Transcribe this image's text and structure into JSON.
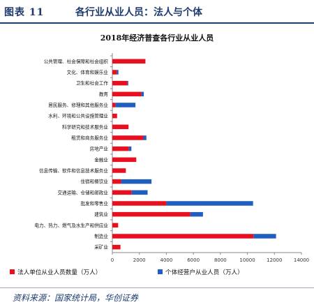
{
  "figure": {
    "number": "图表 11",
    "title": "各行业从业人员：法人与个体"
  },
  "source_label": "资料来源：国家统计局，华创证券",
  "colors": {
    "corporate": "#e8101e",
    "individual": "#1f5fbf",
    "axis": "#888888",
    "text": "#111111"
  },
  "chart_data": {
    "type": "bar",
    "orientation": "horizontal",
    "stacked": true,
    "title": "2018年经济普查各行业从业人员",
    "categories": [
      "公共管理、社会保障和社会组织",
      "文化、体育和娱乐业",
      "卫生和社会工作",
      "教育",
      "居民服务、修理和其他服务业",
      "水利、环境和公共设施管理业",
      "科学研究和技术服务业",
      "租赁和商务服务业",
      "房地产业",
      "金融业",
      "信息传输、软件和信息技术服务业",
      "住宿和餐饮业",
      "交通运输、仓储和邮政业",
      "批发和零售业",
      "建筑业",
      "电力、热力、燃气及水生产和供应业",
      "制造业",
      "采矿业"
    ],
    "series": [
      {
        "name": "法人单位从业人员数量（万人）",
        "values": [
          2450,
          330,
          1120,
          2150,
          240,
          350,
          1200,
          2300,
          1230,
          1770,
          1000,
          650,
          1430,
          4000,
          5780,
          430,
          10450,
          600
        ]
      },
      {
        "name": "个体经营户从业人员（万人）",
        "values": [
          0,
          120,
          60,
          180,
          1470,
          0,
          0,
          220,
          180,
          0,
          0,
          2250,
          1180,
          6420,
          930,
          0,
          1670,
          0
        ]
      }
    ],
    "xlim": [
      0,
      14000
    ],
    "xticks": [
      "0",
      "2000",
      "4000",
      "6000",
      "8000",
      "10000",
      "12000",
      "14000"
    ],
    "xlabel": "",
    "ylabel": "",
    "legend_position": "bottom"
  }
}
